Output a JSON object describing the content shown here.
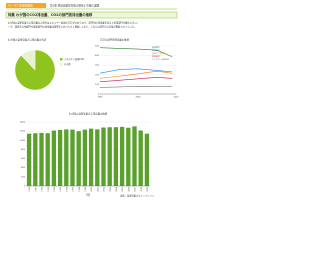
{
  "header": {
    "tag": "テーマ2 地球温暖化",
    "subtitle": "第1章 地球温暖化対策の現状と今後の課題"
  },
  "title": "特集 わが国のCO2排出量、CO2の部門別排出量の推移",
  "body": [
    "わが国の温室効果ガス排出量の大部分はエネルギー起源のCO2が占めており、部門別の排出量を見ると産業部門が最も大きい。",
    "一方、業務その他部門や家庭部門の排出量は基準年に比べ大きく増加しており、これらの部門での対策が重要となっている。"
  ],
  "source": "出典：温室効果ガスインベントリ",
  "chart_data": [
    {
      "type": "pie",
      "title": "わが国の温室効果ガス排出量の内訳",
      "categories": [
        "エネルギー起源CO2",
        "その他"
      ],
      "values": [
        88,
        12
      ],
      "colors": [
        "#8fc31f",
        "#e8f2d0"
      ]
    },
    {
      "type": "line",
      "title": "CO2の部門別排出量の推移",
      "x": [
        1990,
        1995,
        2000,
        2005,
        2009
      ],
      "xlim": [
        1990,
        2010
      ],
      "xticks": [
        1990,
        2000,
        2010
      ],
      "ylim": [
        0,
        500
      ],
      "yticks": [
        0,
        100,
        200,
        300,
        400,
        500
      ],
      "grid": true,
      "series": [
        {
          "name": "産業部門",
          "color": "#2e7d32",
          "values": [
            482,
            475,
            468,
            456,
            388
          ]
        },
        {
          "name": "運輸部門",
          "color": "#1e88e5",
          "values": [
            217,
            255,
            262,
            245,
            230
          ]
        },
        {
          "name": "業務その他部門",
          "color": "#f57c00",
          "values": [
            164,
            185,
            210,
            238,
            216
          ]
        },
        {
          "name": "家庭部門",
          "color": "#c2185b",
          "values": [
            127,
            143,
            158,
            174,
            162
          ]
        },
        {
          "name": "エネルギー転換部門",
          "color": "#757575",
          "values": [
            68,
            74,
            80,
            79,
            80
          ]
        }
      ]
    },
    {
      "type": "bar",
      "title": "わが国の温室効果ガス排出量の推移",
      "color": "#5aa02c",
      "categories": [
        "1990",
        "1991",
        "1992",
        "1993",
        "1994",
        "1995",
        "1996",
        "1997",
        "1998",
        "1999",
        "2000",
        "2001",
        "2002",
        "2003",
        "2004",
        "2005",
        "2006",
        "2007",
        "2008",
        "2009"
      ],
      "values": [
        1144,
        1154,
        1162,
        1155,
        1212,
        1226,
        1238,
        1234,
        1199,
        1233,
        1255,
        1239,
        1279,
        1285,
        1286,
        1293,
        1274,
        1304,
        1214,
        1145
      ],
      "ylim": [
        0,
        1400
      ],
      "yticks": [
        0,
        200,
        400,
        600,
        800,
        1000,
        1200,
        1400
      ],
      "grid": true,
      "xlabel": "年度"
    }
  ]
}
